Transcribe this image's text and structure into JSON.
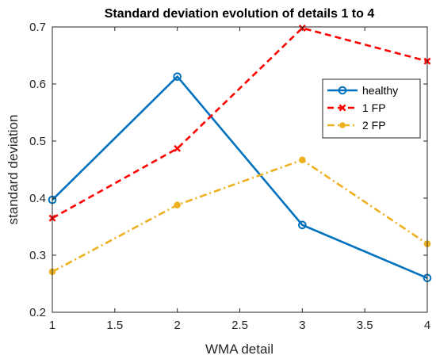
{
  "chart_data": {
    "type": "line",
    "title": "Standard deviation evolution of details 1 to 4",
    "xlabel": "WMA detail",
    "ylabel": "standard deviation",
    "xlim": [
      1,
      4
    ],
    "ylim": [
      0.2,
      0.7
    ],
    "xticks": [
      1,
      1.5,
      2,
      2.5,
      3,
      3.5,
      4
    ],
    "yticks": [
      0.2,
      0.3,
      0.4,
      0.5,
      0.6,
      0.7
    ],
    "xtick_labels": [
      "1",
      "1.5",
      "2",
      "2.5",
      "3",
      "3.5",
      "4"
    ],
    "ytick_labels": [
      "0.2",
      "0.3",
      "0.4",
      "0.5",
      "0.6",
      "0.7"
    ],
    "x": [
      1,
      2,
      3,
      4
    ],
    "grid": false,
    "legend_position": "top-right",
    "series": [
      {
        "name": "healthy",
        "values": [
          0.397,
          0.613,
          0.353,
          0.26
        ],
        "color": "#0072BD",
        "line_style": "solid",
        "marker": "circle-open"
      },
      {
        "name": "1 FP",
        "values": [
          0.365,
          0.487,
          0.698,
          0.64
        ],
        "color": "#FF0000",
        "line_style": "dashed",
        "marker": "x"
      },
      {
        "name": "2 FP",
        "values": [
          0.271,
          0.388,
          0.467,
          0.32
        ],
        "color": "#EDB120",
        "line_style": "dash-dot",
        "marker": "dot"
      }
    ]
  }
}
